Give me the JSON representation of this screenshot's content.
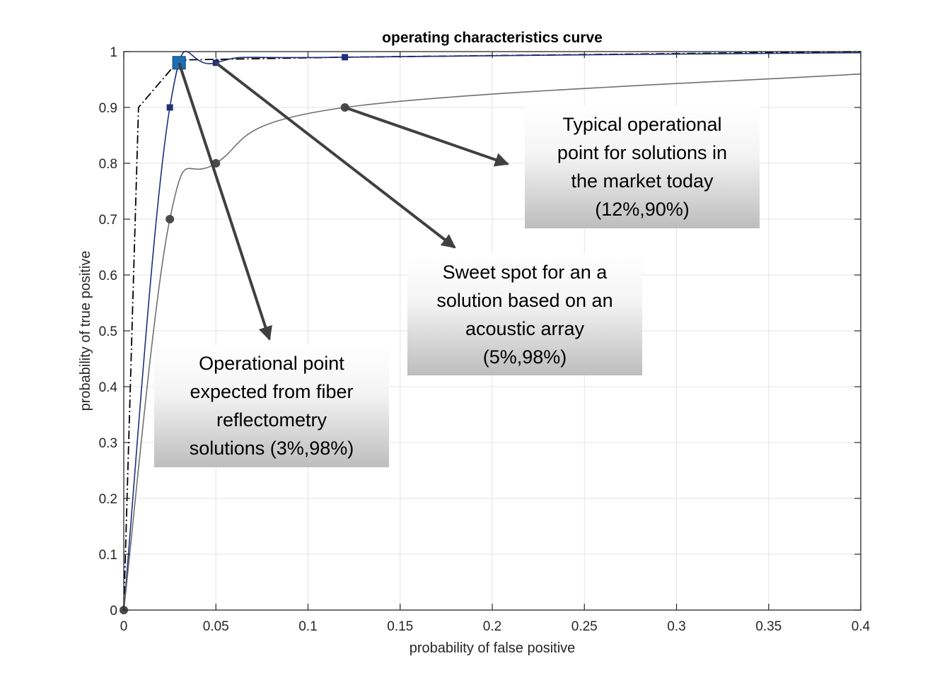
{
  "chart_data": {
    "type": "line",
    "title": "operating characteristics curve",
    "xlabel": "probability of false positive",
    "ylabel": "probability of true positive",
    "xlim": [
      0,
      0.4
    ],
    "ylim": [
      0,
      1
    ],
    "xticks": [
      "0",
      "0.05",
      "0.1",
      "0.15",
      "0.2",
      "0.25",
      "0.3",
      "0.35",
      "0.4"
    ],
    "yticks": [
      "0",
      "0.1",
      "0.2",
      "0.3",
      "0.4",
      "0.5",
      "0.6",
      "0.7",
      "0.8",
      "0.9",
      "1"
    ],
    "grid": true,
    "series": [
      {
        "style": "dash-dot",
        "color": "#000000",
        "x": [
          0,
          0.008,
          0.03,
          0.12,
          0.4
        ],
        "y": [
          0,
          0.9,
          0.985,
          0.99,
          1.0
        ]
      },
      {
        "style": "solid-square-markers",
        "color": "#1f2f7a",
        "x": [
          0,
          0.025,
          0.05,
          0.12,
          0.4
        ],
        "y": [
          0,
          0.9,
          0.98,
          0.99,
          0.998
        ],
        "markers": [
          [
            0.025,
            0.9
          ],
          [
            0.05,
            0.98
          ],
          [
            0.12,
            0.99
          ]
        ]
      },
      {
        "style": "solid-circle-markers",
        "color": "#707070",
        "x": [
          0,
          0.025,
          0.05,
          0.12,
          0.4
        ],
        "y": [
          0,
          0.7,
          0.8,
          0.9,
          0.96
        ],
        "markers": [
          [
            0,
            0
          ],
          [
            0.025,
            0.7
          ],
          [
            0.05,
            0.8
          ],
          [
            0.12,
            0.9
          ]
        ]
      }
    ],
    "highlight_point": {
      "x": 0.03,
      "y": 0.98,
      "color": "#1a6fb5"
    },
    "annotations": [
      {
        "lines": [
          "Typical operational",
          "point for solutions in",
          "the market today",
          "(12%,90%)"
        ],
        "target": {
          "x": 0.12,
          "y": 0.9
        }
      },
      {
        "lines": [
          "Sweet spot for an a",
          "solution based on an",
          "acoustic array",
          "(5%,98%)"
        ],
        "target": {
          "x": 0.05,
          "y": 0.98
        }
      },
      {
        "lines": [
          "Operational point",
          "expected from fiber",
          "reflectometry",
          "solutions (3%,98%)"
        ],
        "target": {
          "x": 0.03,
          "y": 0.98
        }
      }
    ]
  }
}
